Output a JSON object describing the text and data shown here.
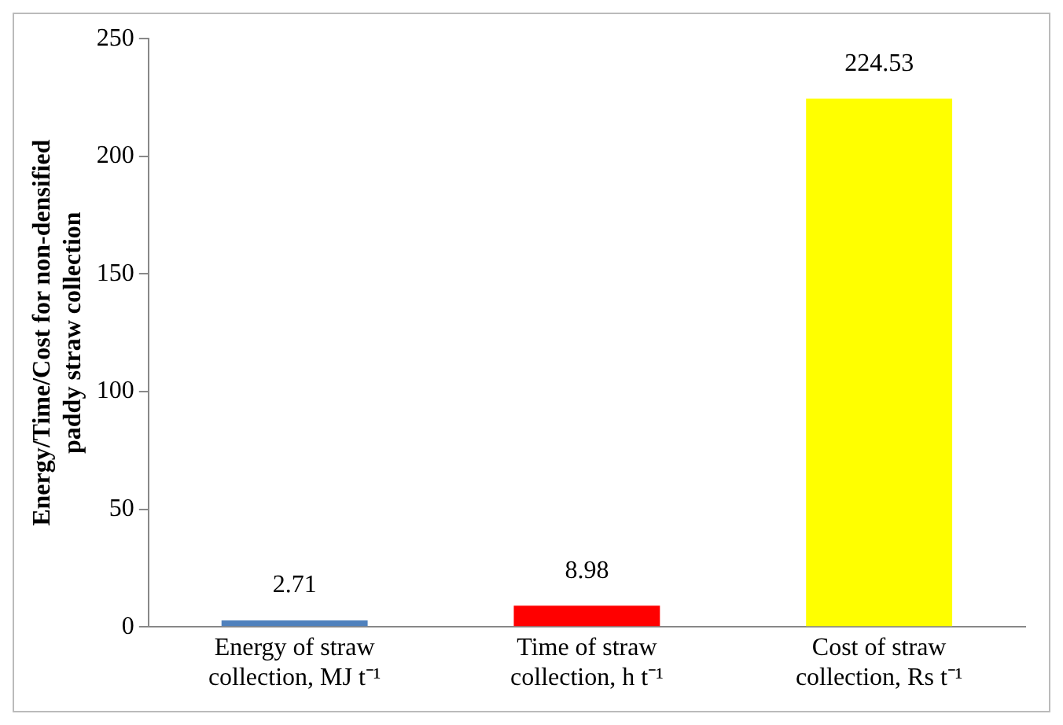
{
  "chart_data": {
    "type": "bar",
    "ylabel": "Energy/Time/Cost for non-densified paddy straw collection",
    "categories": [
      "Energy of straw collection, MJ t⁻¹",
      "Time of straw collection, h t⁻¹",
      "Cost of straw collection, Rs t⁻¹"
    ],
    "values": [
      2.71,
      8.98,
      224.53
    ],
    "colors": [
      "#4f81bd",
      "#ff0000",
      "#ffff00"
    ],
    "ylim": [
      0,
      250
    ],
    "yticks": [
      0,
      50,
      100,
      150,
      200,
      250
    ],
    "grid": false,
    "data_labels": true
  }
}
